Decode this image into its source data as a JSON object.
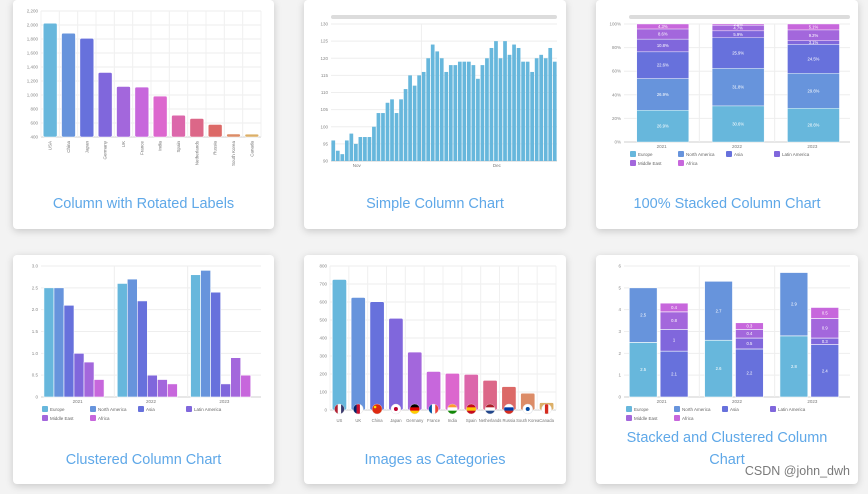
{
  "palette": [
    "#67B7DC",
    "#6794DC",
    "#6771DC",
    "#8067DC",
    "#A367DC",
    "#C767DC",
    "#DC67CE",
    "#DC67AB",
    "#DC6788",
    "#DC6967",
    "#DC8C67",
    "#DCAF67"
  ],
  "cards": [
    {
      "title": "Column with Rotated Labels"
    },
    {
      "title": "Simple Column Chart"
    },
    {
      "title": "100% Stacked Column Chart"
    },
    {
      "title": "Clustered Column Chart"
    },
    {
      "title": "Images as Categories"
    },
    {
      "title": "Stacked and Clustered Column Chart"
    }
  ],
  "watermark": "CSDN @john_dwh",
  "chart_data": [
    {
      "type": "bar",
      "title": "Column with Rotated Labels",
      "categories": [
        "USA",
        "China",
        "Japan",
        "Germany",
        "UK",
        "France",
        "India",
        "Spain",
        "Netherlands",
        "Russia",
        "South Korea",
        "Canada"
      ],
      "values": [
        2025,
        1882,
        1809,
        1322,
        1122,
        1114,
        984,
        711,
        665,
        580,
        443,
        441
      ],
      "ylim": [
        400,
        2200
      ],
      "yticks": [
        400,
        600,
        800,
        1000,
        1200,
        1400,
        1600,
        1800,
        2000,
        2200
      ],
      "ytick_labels": [
        "400",
        "600",
        "800",
        "1,000",
        "1,200",
        "1,400",
        "1,600",
        "1,800",
        "2,000",
        "2,200"
      ],
      "xlabel_rotation": -90,
      "grid": true
    },
    {
      "type": "bar",
      "title": "Simple Column Chart",
      "x_labels": [
        {
          "index": 3,
          "label": "Nov"
        },
        {
          "index": 34,
          "label": "Dec"
        }
      ],
      "values": [
        96,
        93,
        92,
        96,
        98,
        95,
        97,
        97,
        97,
        100,
        104,
        104,
        107,
        108,
        104,
        108,
        111,
        115,
        112,
        115,
        116,
        120,
        124,
        122,
        120,
        116,
        118,
        118,
        119,
        119,
        119,
        118,
        114,
        118,
        120,
        123,
        125,
        120,
        125,
        121,
        124,
        123,
        119,
        119,
        116,
        120,
        121,
        120,
        123,
        119
      ],
      "ylim": [
        90,
        130
      ],
      "yticks": [
        90,
        95,
        100,
        105,
        110,
        115,
        120,
        125,
        130
      ],
      "scrollbar": true,
      "grid": true
    },
    {
      "type": "bar",
      "stacking": "percent",
      "title": "100% Stacked Column Chart",
      "categories": [
        "2021",
        "2022",
        "2023"
      ],
      "series": [
        {
          "name": "Europe",
          "values": [
            26.9,
            30.6,
            28.6
          ],
          "labels": [
            "26.9%",
            "30.6%",
            "28.6%"
          ]
        },
        {
          "name": "North America",
          "values": [
            26.9,
            31.8,
            29.6
          ],
          "labels": [
            "26.9%",
            "31.8%",
            "29.6%"
          ]
        },
        {
          "name": "Asia",
          "values": [
            22.6,
            25.9,
            24.5
          ],
          "labels": [
            "22.6%",
            "25.9%",
            "24.5%"
          ]
        },
        {
          "name": "Latin America",
          "values": [
            10.8,
            5.9,
            3.1
          ],
          "labels": [
            "10.8%",
            "5.9%",
            "3.1%"
          ]
        },
        {
          "name": "Middle East",
          "values": [
            8.6,
            4.7,
            9.2
          ],
          "labels": [
            "8.6%",
            "4.7%",
            "9.2%"
          ]
        },
        {
          "name": "Africa",
          "values": [
            4.3,
            3.5,
            5.1
          ],
          "labels": [
            "4.3%",
            "3.5%",
            "5.1%"
          ]
        }
      ],
      "ylim": [
        0,
        100
      ],
      "yticks": [
        0,
        20,
        40,
        60,
        80,
        100
      ],
      "ytick_labels": [
        "0%",
        "20%",
        "40%",
        "60%",
        "80%",
        "100%"
      ],
      "legend_position": "bottom",
      "scrollbar": true
    },
    {
      "type": "bar",
      "stacking": "none",
      "title": "Clustered Column Chart",
      "categories": [
        "2021",
        "2022",
        "2023"
      ],
      "series": [
        {
          "name": "Europe",
          "values": [
            2.5,
            2.6,
            2.8
          ]
        },
        {
          "name": "North America",
          "values": [
            2.5,
            2.7,
            2.9
          ]
        },
        {
          "name": "Asia",
          "values": [
            2.1,
            2.2,
            2.4
          ]
        },
        {
          "name": "Latin America",
          "values": [
            1.0,
            0.5,
            0.3
          ]
        },
        {
          "name": "Middle East",
          "values": [
            0.8,
            0.4,
            0.9
          ]
        },
        {
          "name": "Africa",
          "values": [
            0.4,
            0.3,
            0.5
          ]
        }
      ],
      "ylim": [
        0,
        3
      ],
      "yticks": [
        0,
        0.5,
        1,
        1.5,
        2,
        2.5,
        3
      ],
      "ytick_labels": [
        "0",
        "0.5",
        "1.0",
        "1.5",
        "2.0",
        "2.5",
        "3.0"
      ],
      "legend_position": "bottom"
    },
    {
      "type": "bar",
      "title": "Images as Categories",
      "categories": [
        "US",
        "UK",
        "China",
        "Japan",
        "Germany",
        "France",
        "India",
        "Spain",
        "Netherlands",
        "Russia",
        "South Korea",
        "Canada"
      ],
      "values": [
        725,
        625,
        602,
        509,
        322,
        214,
        204,
        198,
        165,
        130,
        93,
        41
      ],
      "ylim": [
        0,
        800
      ],
      "yticks": [
        0,
        100,
        200,
        300,
        400,
        500,
        600,
        700,
        800
      ],
      "flags": [
        "us",
        "uk",
        "cn",
        "jp",
        "de",
        "fr",
        "in",
        "es",
        "nl",
        "ru",
        "kr",
        "ca"
      ],
      "grid": true
    },
    {
      "type": "bar",
      "stacking": "stacked-clustered",
      "title": "Stacked and Clustered Column Chart",
      "categories": [
        "2021",
        "2022",
        "2023"
      ],
      "stacks": [
        {
          "series": [
            "Europe",
            "North America"
          ],
          "values": [
            [
              2.5,
              2.5
            ],
            [
              2.6,
              2.7
            ],
            [
              2.8,
              2.9
            ]
          ]
        },
        {
          "series": [
            "Asia",
            "Latin America",
            "Middle East",
            "Africa"
          ],
          "values": [
            [
              2.1,
              1.0,
              0.8,
              0.4
            ],
            [
              2.2,
              0.5,
              0.4,
              0.3
            ],
            [
              2.4,
              0.3,
              0.9,
              0.5
            ]
          ]
        }
      ],
      "legend": [
        "Europe",
        "North America",
        "Asia",
        "Latin America",
        "Middle East",
        "Africa"
      ],
      "ylim": [
        0,
        6
      ],
      "yticks": [
        0,
        1,
        2,
        3,
        4,
        5,
        6
      ],
      "legend_position": "bottom"
    }
  ]
}
